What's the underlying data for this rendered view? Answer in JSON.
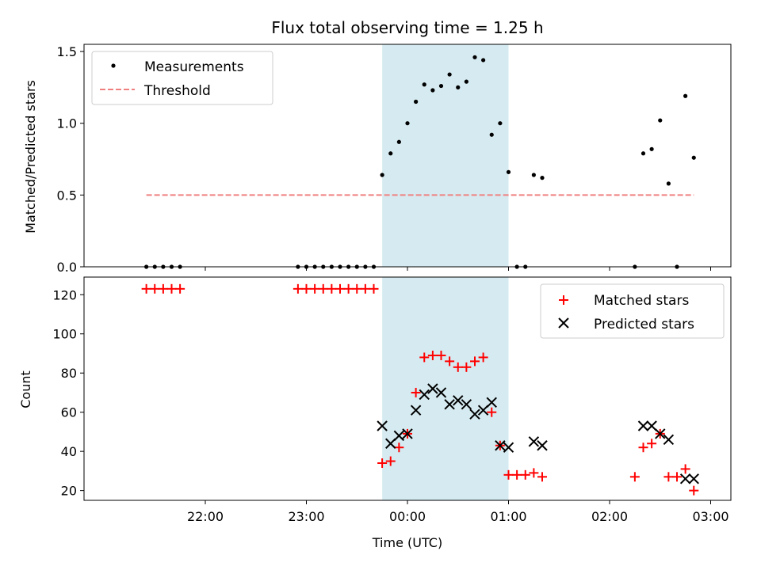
{
  "chart_data": {
    "title": "Flux total observing time = 1.25 h",
    "xlabel": "Time (UTC)",
    "x_ticks": [
      "22:00",
      "23:00",
      "00:00",
      "01:00",
      "02:00",
      "03:00"
    ],
    "highlight_span": {
      "start": "23:45",
      "end": "01:00",
      "color": "#d4eaf0"
    },
    "panels": [
      {
        "type": "scatter",
        "ylabel": "Matched/Predicted stars",
        "ylim": [
          0,
          1.55
        ],
        "y_ticks": [
          "0.0",
          "0.5",
          "1.0",
          "1.5"
        ],
        "legend": {
          "placement": "top-left",
          "entries": [
            "Measurements",
            "Threshold"
          ]
        },
        "threshold": {
          "name": "Threshold",
          "value": 0.5,
          "from": "21:25",
          "to": "02:50",
          "color": "#f08080",
          "style": "dashed"
        },
        "series": [
          {
            "name": "Measurements",
            "marker": "dot",
            "color": "#000000",
            "points": [
              [
                "21:25",
                0
              ],
              [
                "21:30",
                0
              ],
              [
                "21:35",
                0
              ],
              [
                "21:40",
                0
              ],
              [
                "21:45",
                0
              ],
              [
                "22:55",
                0
              ],
              [
                "23:00",
                0
              ],
              [
                "23:05",
                0
              ],
              [
                "23:10",
                0
              ],
              [
                "23:15",
                0
              ],
              [
                "23:20",
                0
              ],
              [
                "23:25",
                0
              ],
              [
                "23:30",
                0
              ],
              [
                "23:35",
                0
              ],
              [
                "23:40",
                0
              ],
              [
                "23:45",
                0.64
              ],
              [
                "23:50",
                0.79
              ],
              [
                "23:55",
                0.87
              ],
              [
                "00:00",
                1.0
              ],
              [
                "00:05",
                1.15
              ],
              [
                "00:10",
                1.27
              ],
              [
                "00:15",
                1.23
              ],
              [
                "00:20",
                1.26
              ],
              [
                "00:25",
                1.34
              ],
              [
                "00:30",
                1.25
              ],
              [
                "00:35",
                1.29
              ],
              [
                "00:40",
                1.46
              ],
              [
                "00:45",
                1.44
              ],
              [
                "00:50",
                0.92
              ],
              [
                "00:55",
                1.0
              ],
              [
                "01:00",
                0.66
              ],
              [
                "01:05",
                0
              ],
              [
                "01:10",
                0
              ],
              [
                "01:15",
                0.64
              ],
              [
                "01:20",
                0.62
              ],
              [
                "02:15",
                0
              ],
              [
                "02:20",
                0.79
              ],
              [
                "02:25",
                0.82
              ],
              [
                "02:30",
                1.02
              ],
              [
                "02:35",
                0.58
              ],
              [
                "02:40",
                0
              ],
              [
                "02:45",
                1.19
              ],
              [
                "02:50",
                0.76
              ]
            ]
          }
        ]
      },
      {
        "type": "scatter",
        "ylabel": "Count",
        "ylim": [
          15,
          129
        ],
        "y_ticks": [
          "20",
          "40",
          "60",
          "80",
          "100",
          "120"
        ],
        "legend": {
          "placement": "top-right",
          "entries": [
            "Matched stars",
            "Predicted stars"
          ]
        },
        "series": [
          {
            "name": "Matched stars",
            "marker": "plus",
            "color": "#ff0000",
            "points": [
              [
                "21:25",
                123
              ],
              [
                "21:30",
                123
              ],
              [
                "21:35",
                123
              ],
              [
                "21:40",
                123
              ],
              [
                "21:45",
                123
              ],
              [
                "22:55",
                123
              ],
              [
                "23:00",
                123
              ],
              [
                "23:05",
                123
              ],
              [
                "23:10",
                123
              ],
              [
                "23:15",
                123
              ],
              [
                "23:20",
                123
              ],
              [
                "23:25",
                123
              ],
              [
                "23:30",
                123
              ],
              [
                "23:35",
                123
              ],
              [
                "23:40",
                123
              ],
              [
                "23:45",
                34
              ],
              [
                "23:50",
                35
              ],
              [
                "23:55",
                42
              ],
              [
                "00:00",
                49
              ],
              [
                "00:05",
                70
              ],
              [
                "00:10",
                88
              ],
              [
                "00:15",
                89
              ],
              [
                "00:20",
                89
              ],
              [
                "00:25",
                86
              ],
              [
                "00:30",
                83
              ],
              [
                "00:35",
                83
              ],
              [
                "00:40",
                86
              ],
              [
                "00:45",
                88
              ],
              [
                "00:50",
                60
              ],
              [
                "00:55",
                43
              ],
              [
                "01:00",
                28
              ],
              [
                "01:05",
                28
              ],
              [
                "01:10",
                28
              ],
              [
                "01:15",
                29
              ],
              [
                "01:20",
                27
              ],
              [
                "02:15",
                27
              ],
              [
                "02:20",
                42
              ],
              [
                "02:25",
                44
              ],
              [
                "02:30",
                49
              ],
              [
                "02:35",
                27
              ],
              [
                "02:40",
                27
              ],
              [
                "02:45",
                31
              ],
              [
                "02:50",
                20
              ]
            ]
          },
          {
            "name": "Predicted stars",
            "marker": "x",
            "color": "#000000",
            "points": [
              [
                "23:45",
                53
              ],
              [
                "23:50",
                44
              ],
              [
                "23:55",
                48
              ],
              [
                "00:00",
                49
              ],
              [
                "00:05",
                61
              ],
              [
                "00:10",
                69
              ],
              [
                "00:15",
                72
              ],
              [
                "00:20",
                70
              ],
              [
                "00:25",
                64
              ],
              [
                "00:30",
                66
              ],
              [
                "00:35",
                64
              ],
              [
                "00:40",
                59
              ],
              [
                "00:45",
                61
              ],
              [
                "00:50",
                65
              ],
              [
                "00:55",
                43
              ],
              [
                "01:00",
                42
              ],
              [
                "01:15",
                45
              ],
              [
                "01:20",
                43
              ],
              [
                "02:20",
                53
              ],
              [
                "02:25",
                53
              ],
              [
                "02:30",
                49
              ],
              [
                "02:35",
                46
              ],
              [
                "02:45",
                26
              ],
              [
                "02:50",
                26
              ]
            ]
          }
        ]
      }
    ]
  }
}
